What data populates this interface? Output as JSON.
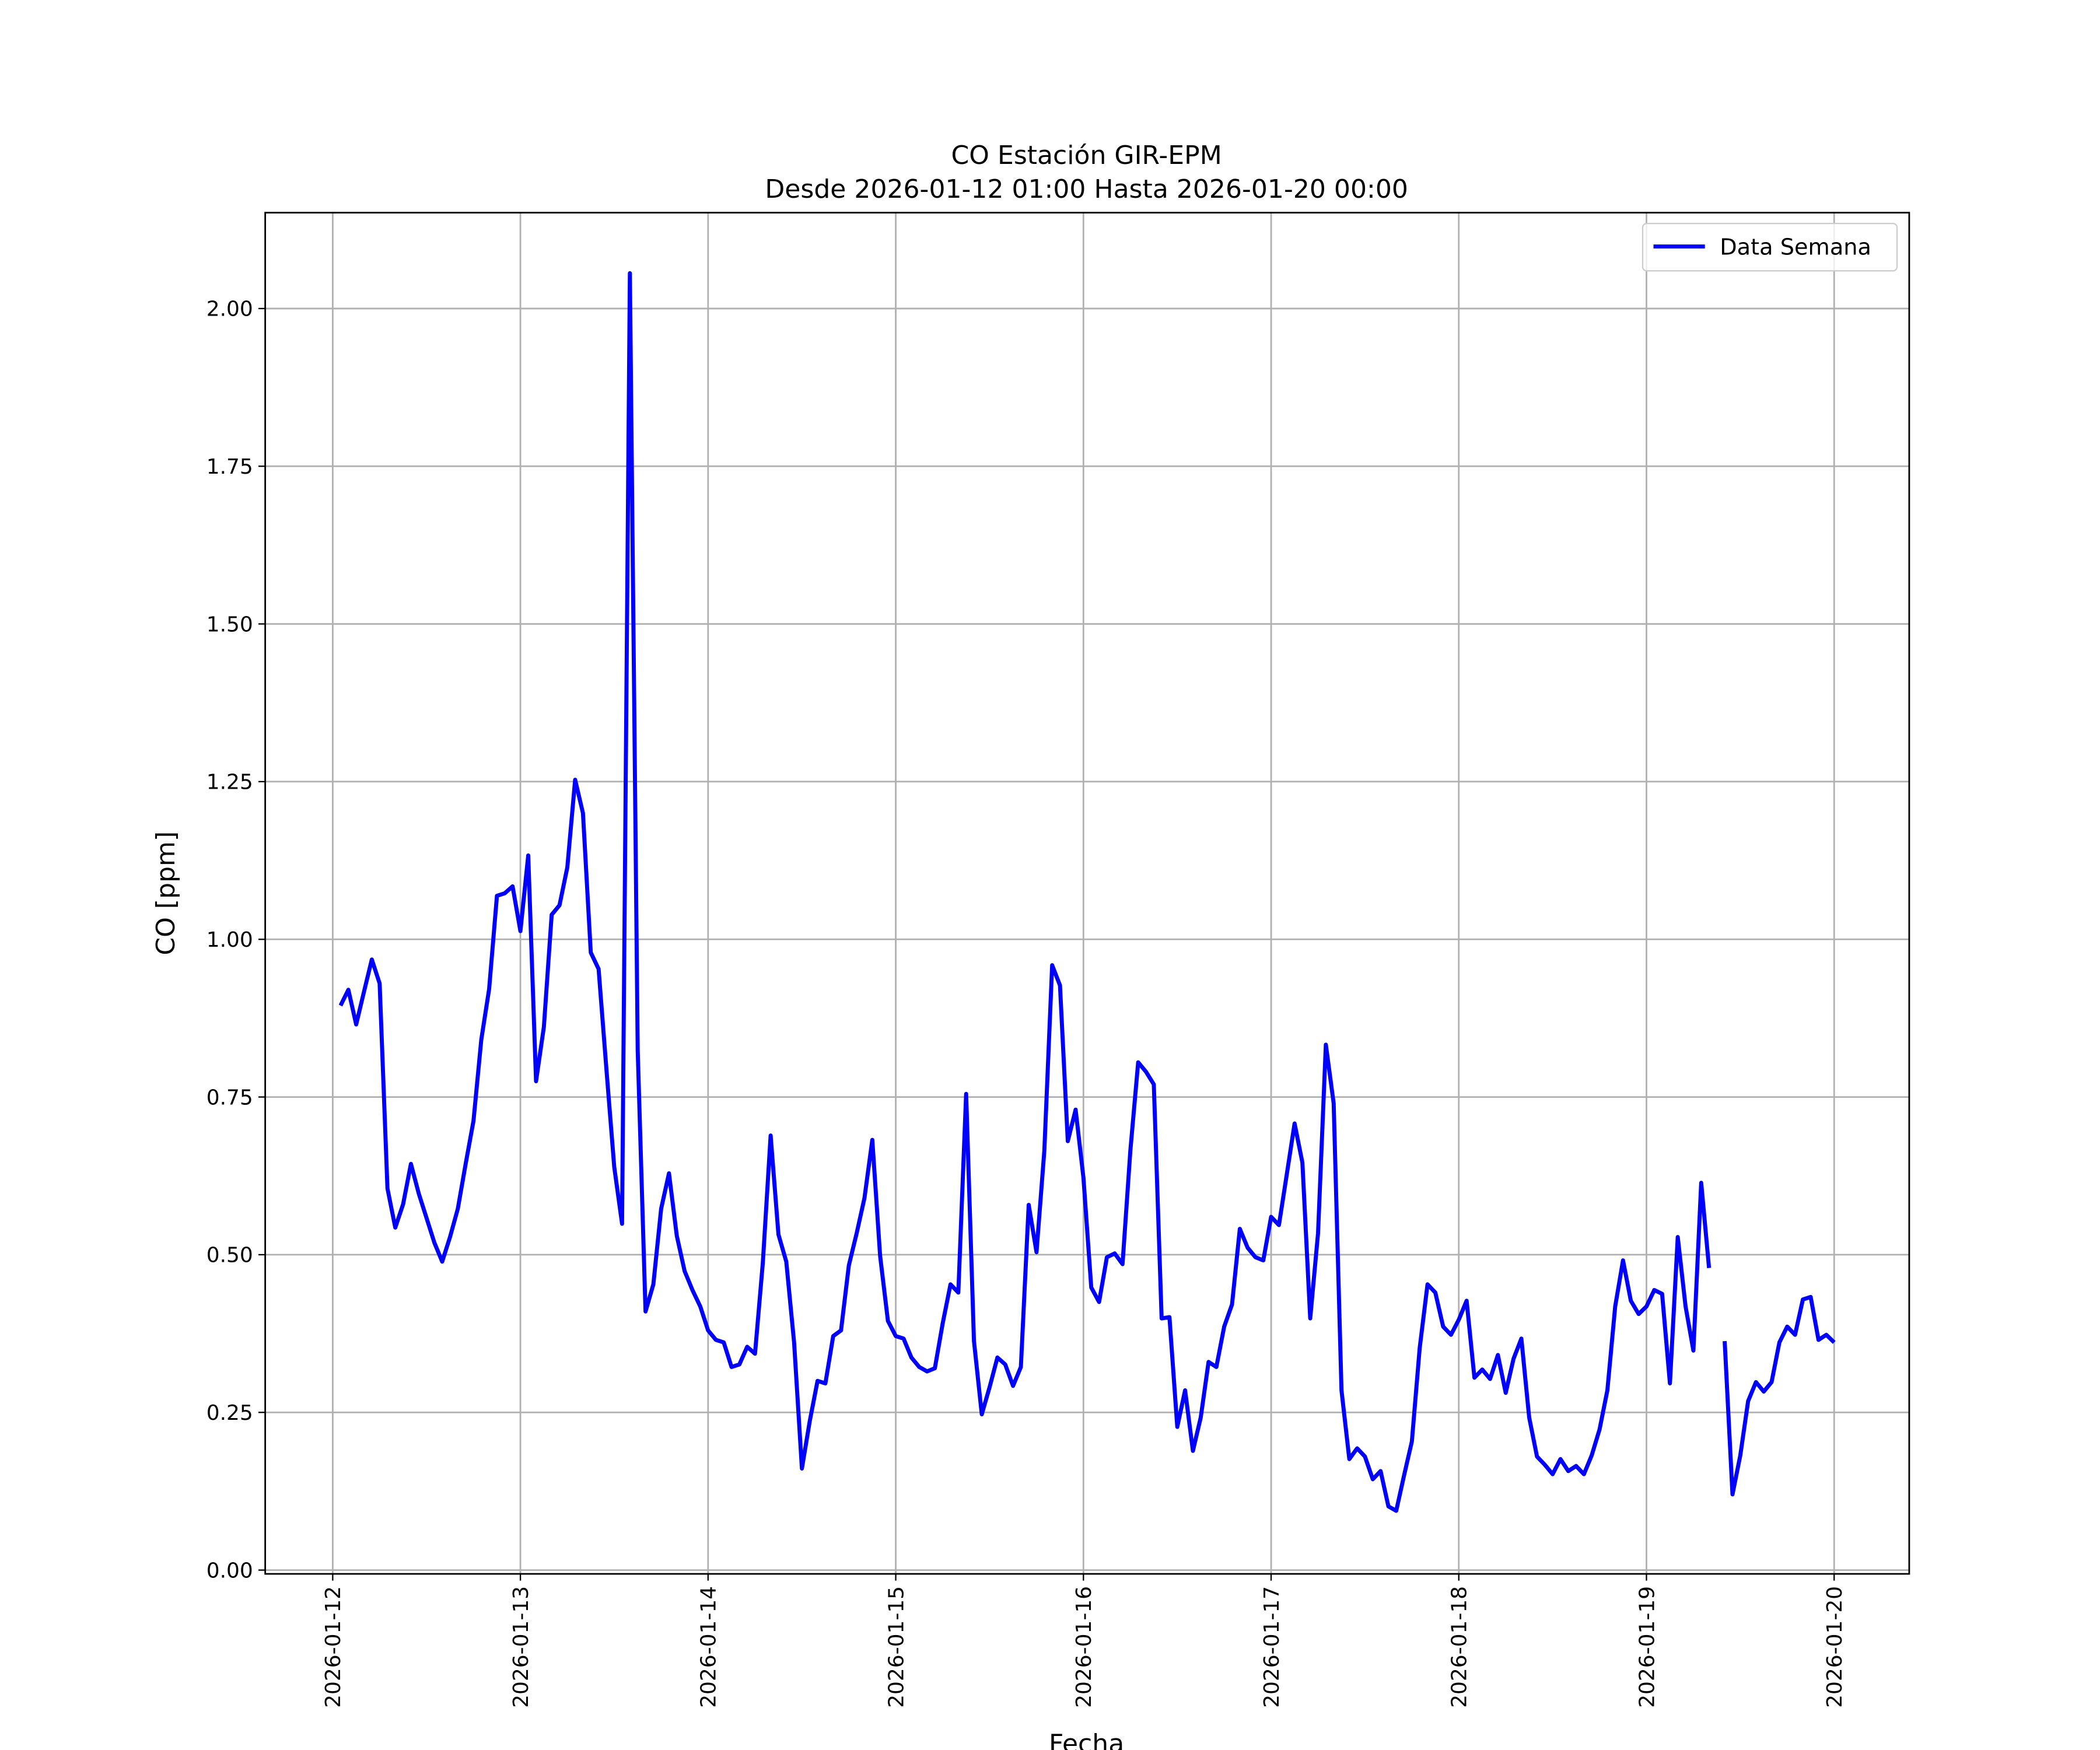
{
  "chart_data": {
    "type": "line",
    "title": "CO Estación GIR-EPM",
    "subtitle": "Desde 2026-01-12 01:00 Hasta 2026-01-20 00:00",
    "x_label": "Fecha",
    "y_label": "CO [ppm]",
    "x": [
      "2026-01-12 01:00",
      "2026-01-12 02:00",
      "2026-01-12 03:00",
      "2026-01-12 04:00",
      "2026-01-12 05:00",
      "2026-01-12 06:00",
      "2026-01-12 07:00",
      "2026-01-12 08:00",
      "2026-01-12 09:00",
      "2026-01-12 10:00",
      "2026-01-12 11:00",
      "2026-01-12 12:00",
      "2026-01-12 13:00",
      "2026-01-12 14:00",
      "2026-01-12 15:00",
      "2026-01-12 16:00",
      "2026-01-12 17:00",
      "2026-01-12 18:00",
      "2026-01-12 19:00",
      "2026-01-12 20:00",
      "2026-01-12 21:00",
      "2026-01-12 22:00",
      "2026-01-12 23:00",
      "2026-01-13 00:00",
      "2026-01-13 01:00",
      "2026-01-13 02:00",
      "2026-01-13 03:00",
      "2026-01-13 04:00",
      "2026-01-13 05:00",
      "2026-01-13 06:00",
      "2026-01-13 07:00",
      "2026-01-13 08:00",
      "2026-01-13 09:00",
      "2026-01-13 10:00",
      "2026-01-13 11:00",
      "2026-01-13 12:00",
      "2026-01-13 13:00",
      "2026-01-13 14:00",
      "2026-01-13 15:00",
      "2026-01-13 16:00",
      "2026-01-13 17:00",
      "2026-01-13 18:00",
      "2026-01-13 19:00",
      "2026-01-13 20:00",
      "2026-01-13 21:00",
      "2026-01-13 22:00",
      "2026-01-13 23:00",
      "2026-01-14 00:00",
      "2026-01-14 01:00",
      "2026-01-14 02:00",
      "2026-01-14 03:00",
      "2026-01-14 04:00",
      "2026-01-14 05:00",
      "2026-01-14 06:00",
      "2026-01-14 07:00",
      "2026-01-14 08:00",
      "2026-01-14 09:00",
      "2026-01-14 10:00",
      "2026-01-14 11:00",
      "2026-01-14 12:00",
      "2026-01-14 13:00",
      "2026-01-14 14:00",
      "2026-01-14 15:00",
      "2026-01-14 16:00",
      "2026-01-14 17:00",
      "2026-01-14 18:00",
      "2026-01-14 19:00",
      "2026-01-14 20:00",
      "2026-01-14 21:00",
      "2026-01-14 22:00",
      "2026-01-14 23:00",
      "2026-01-15 00:00",
      "2026-01-15 01:00",
      "2026-01-15 02:00",
      "2026-01-15 03:00",
      "2026-01-15 04:00",
      "2026-01-15 05:00",
      "2026-01-15 06:00",
      "2026-01-15 07:00",
      "2026-01-15 08:00",
      "2026-01-15 09:00",
      "2026-01-15 10:00",
      "2026-01-15 11:00",
      "2026-01-15 12:00",
      "2026-01-15 13:00",
      "2026-01-15 14:00",
      "2026-01-15 15:00",
      "2026-01-15 16:00",
      "2026-01-15 17:00",
      "2026-01-15 18:00",
      "2026-01-15 19:00",
      "2026-01-15 20:00",
      "2026-01-15 21:00",
      "2026-01-15 22:00",
      "2026-01-15 23:00",
      "2026-01-16 00:00",
      "2026-01-16 01:00",
      "2026-01-16 02:00",
      "2026-01-16 03:00",
      "2026-01-16 04:00",
      "2026-01-16 05:00",
      "2026-01-16 06:00",
      "2026-01-16 07:00",
      "2026-01-16 08:00",
      "2026-01-16 09:00",
      "2026-01-16 10:00",
      "2026-01-16 11:00",
      "2026-01-16 12:00",
      "2026-01-16 13:00",
      "2026-01-16 14:00",
      "2026-01-16 15:00",
      "2026-01-16 16:00",
      "2026-01-16 17:00",
      "2026-01-16 18:00",
      "2026-01-16 19:00",
      "2026-01-16 20:00",
      "2026-01-16 21:00",
      "2026-01-16 22:00",
      "2026-01-16 23:00",
      "2026-01-17 00:00",
      "2026-01-17 01:00",
      "2026-01-17 02:00",
      "2026-01-17 03:00",
      "2026-01-17 04:00",
      "2026-01-17 05:00",
      "2026-01-17 06:00",
      "2026-01-17 07:00",
      "2026-01-17 08:00",
      "2026-01-17 09:00",
      "2026-01-17 10:00",
      "2026-01-17 11:00",
      "2026-01-17 12:00",
      "2026-01-17 13:00",
      "2026-01-17 14:00",
      "2026-01-17 15:00",
      "2026-01-17 16:00",
      "2026-01-17 17:00",
      "2026-01-17 18:00",
      "2026-01-17 19:00",
      "2026-01-17 20:00",
      "2026-01-17 21:00",
      "2026-01-17 22:00",
      "2026-01-17 23:00",
      "2026-01-18 00:00",
      "2026-01-18 01:00",
      "2026-01-18 02:00",
      "2026-01-18 03:00",
      "2026-01-18 04:00",
      "2026-01-18 05:00",
      "2026-01-18 06:00",
      "2026-01-18 07:00",
      "2026-01-18 08:00",
      "2026-01-18 09:00",
      "2026-01-18 10:00",
      "2026-01-18 11:00",
      "2026-01-18 12:00",
      "2026-01-18 13:00",
      "2026-01-18 14:00",
      "2026-01-18 15:00",
      "2026-01-18 16:00",
      "2026-01-18 17:00",
      "2026-01-18 18:00",
      "2026-01-18 19:00",
      "2026-01-18 20:00",
      "2026-01-18 21:00",
      "2026-01-18 22:00",
      "2026-01-18 23:00",
      "2026-01-19 00:00",
      "2026-01-19 01:00",
      "2026-01-19 02:00",
      "2026-01-19 03:00",
      "2026-01-19 04:00",
      "2026-01-19 05:00",
      "2026-01-19 06:00",
      "2026-01-19 07:00",
      "2026-01-19 08:00",
      "2026-01-19 09:00",
      "2026-01-19 10:00",
      "2026-01-19 11:00",
      "2026-01-19 12:00",
      "2026-01-19 13:00",
      "2026-01-19 14:00",
      "2026-01-19 15:00",
      "2026-01-19 16:00",
      "2026-01-19 17:00",
      "2026-01-19 18:00",
      "2026-01-19 19:00",
      "2026-01-19 20:00",
      "2026-01-19 21:00",
      "2026-01-19 22:00",
      "2026-01-19 23:00",
      "2026-01-20 00:00"
    ],
    "series": [
      {
        "name": "Data Semana",
        "color": "#0000ff",
        "values": [
          0.895,
          0.92,
          0.865,
          0.917,
          0.968,
          0.93,
          0.605,
          0.543,
          0.58,
          0.644,
          0.597,
          0.558,
          0.519,
          0.489,
          0.528,
          0.573,
          0.644,
          0.712,
          0.841,
          0.921,
          1.069,
          1.073,
          1.084,
          1.013,
          1.133,
          0.775,
          0.861,
          1.039,
          1.054,
          1.114,
          1.253,
          1.2,
          0.979,
          0.953,
          0.794,
          0.639,
          0.549,
          2.056,
          0.824,
          0.41,
          0.453,
          0.573,
          0.629,
          0.53,
          0.474,
          0.444,
          0.418,
          0.38,
          0.365,
          0.361,
          0.322,
          0.326,
          0.354,
          0.343,
          0.487,
          0.689,
          0.532,
          0.489,
          0.361,
          0.161,
          0.236,
          0.3,
          0.296,
          0.371,
          0.38,
          0.483,
          0.534,
          0.59,
          0.682,
          0.498,
          0.395,
          0.371,
          0.367,
          0.337,
          0.322,
          0.315,
          0.32,
          0.391,
          0.453,
          0.44,
          0.755,
          0.363,
          0.247,
          0.29,
          0.337,
          0.326,
          0.292,
          0.322,
          0.579,
          0.504,
          0.665,
          0.959,
          0.927,
          0.68,
          0.73,
          0.622,
          0.448,
          0.425,
          0.496,
          0.502,
          0.485,
          0.665,
          0.805,
          0.79,
          0.77,
          0.399,
          0.401,
          0.227,
          0.285,
          0.189,
          0.242,
          0.33,
          0.322,
          0.386,
          0.421,
          0.541,
          0.511,
          0.496,
          0.491,
          0.56,
          0.547,
          0.627,
          0.708,
          0.646,
          0.399,
          0.534,
          0.833,
          0.74,
          0.285,
          0.176,
          0.193,
          0.18,
          0.144,
          0.157,
          0.101,
          0.094,
          0.15,
          0.204,
          0.352,
          0.453,
          0.44,
          0.386,
          0.373,
          0.397,
          0.427,
          0.305,
          0.318,
          0.303,
          0.341,
          0.281,
          0.335,
          0.367,
          0.242,
          0.18,
          0.167,
          0.152,
          0.176,
          0.157,
          0.165,
          0.152,
          0.182,
          0.223,
          0.285,
          0.418,
          0.491,
          0.427,
          0.406,
          0.418,
          0.444,
          0.438,
          0.296,
          0.528,
          0.418,
          0.348,
          0.614,
          0.479,
          null,
          0.363,
          0.12,
          0.182,
          0.268,
          0.298,
          0.283,
          0.298,
          0.361,
          0.386,
          0.373,
          0.429,
          0.433,
          0.365,
          0.373,
          0.361
        ]
      }
    ],
    "xlim": [
      "2026-01-11 15:22",
      "2026-01-20 09:36"
    ],
    "xticks": [
      "2026-01-12",
      "2026-01-13",
      "2026-01-14",
      "2026-01-15",
      "2026-01-16",
      "2026-01-17",
      "2026-01-18",
      "2026-01-19",
      "2026-01-20"
    ],
    "ylim": [
      -0.006,
      2.152
    ],
    "yticks": [
      {
        "value": 0,
        "label": "0.00"
      },
      {
        "value": 0.25,
        "label": "0.25"
      },
      {
        "value": 0.5,
        "label": "0.50"
      },
      {
        "value": 0.75,
        "label": "0.75"
      },
      {
        "value": 1,
        "label": "1.00"
      },
      {
        "value": 1.25,
        "label": "1.25"
      },
      {
        "value": 1.5,
        "label": "1.50"
      },
      {
        "value": 1.75,
        "label": "1.75"
      },
      {
        "value": 2,
        "label": "2.00"
      }
    ],
    "grid": true,
    "legend": "upper right"
  }
}
